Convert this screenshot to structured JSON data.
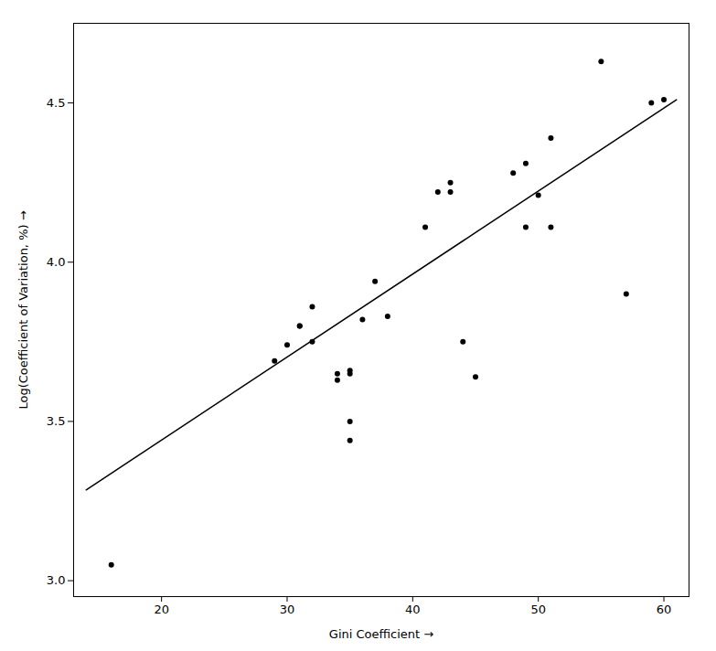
{
  "chart_data": {
    "type": "scatter",
    "xlabel": "Gini Coefficient",
    "ylabel": "Log(Coefficient of Variation, %)",
    "xlim": [
      13,
      62
    ],
    "ylim": [
      2.95,
      4.75
    ],
    "xticks": [
      20,
      30,
      40,
      50,
      60
    ],
    "yticks": [
      {
        "value": 3.0,
        "label": "3.0"
      },
      3.5,
      {
        "value": 4.0,
        "label": "4.0"
      },
      4.5
    ],
    "grid": false,
    "series": [
      {
        "type": "scatter",
        "color": "black",
        "x": [
          16,
          29,
          30,
          31,
          31,
          32,
          32,
          34,
          34,
          35,
          35,
          35,
          35,
          36,
          37,
          38,
          41,
          42,
          43,
          43,
          44,
          45,
          48,
          49,
          49,
          50,
          51,
          51,
          55,
          57,
          59,
          60
        ],
        "values": [
          3.05,
          3.69,
          3.74,
          3.8,
          3.8,
          3.75,
          3.86,
          3.63,
          3.65,
          3.44,
          3.5,
          3.66,
          3.65,
          3.82,
          3.94,
          3.83,
          4.11,
          4.22,
          4.25,
          4.22,
          3.75,
          3.64,
          4.28,
          4.11,
          4.31,
          4.21,
          4.11,
          4.39,
          4.63,
          3.9,
          4.5,
          4.51
        ]
      },
      {
        "type": "line",
        "color": "black",
        "x": [
          14,
          61
        ],
        "values": [
          3.285,
          4.51
        ]
      }
    ]
  }
}
